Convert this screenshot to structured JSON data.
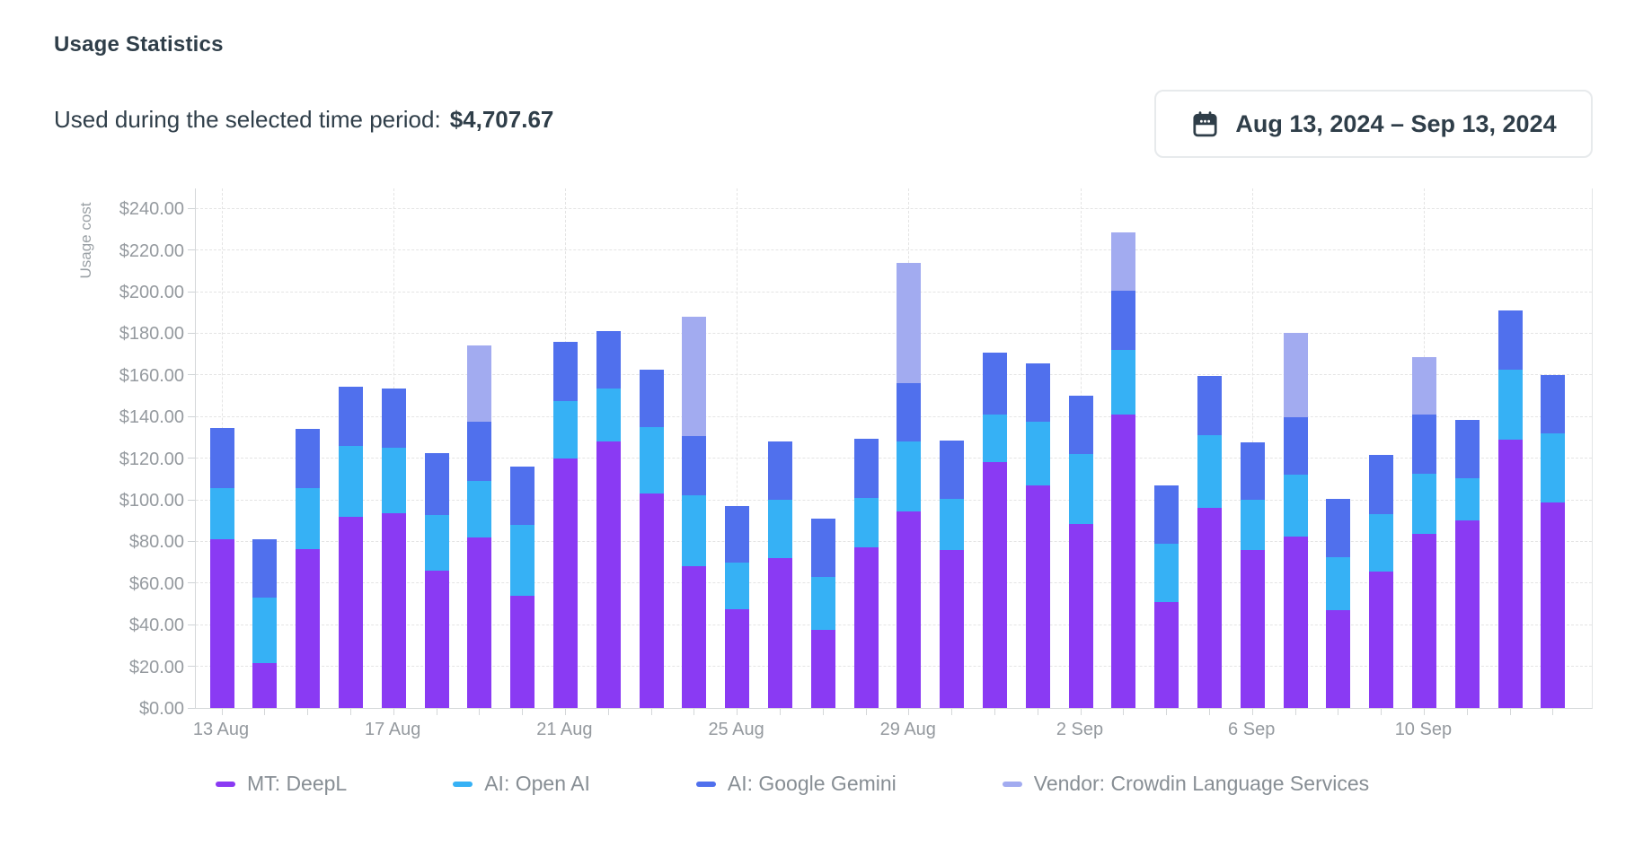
{
  "header": {
    "title": "Usage Statistics",
    "subtitle_label": "Used during the selected time period:",
    "subtitle_value": "$4,707.67",
    "date_range": "Aug 13, 2024 – Sep 13, 2024"
  },
  "colors": {
    "deepl_purple": "#8a3af3",
    "openai_cyan": "#36b1f5",
    "gemini_blue": "#5070ed",
    "crowdin_lavender": "#a2abf0",
    "dark_text": "#2f3e49",
    "axis_text_gray": "#959a9f",
    "legend_text_gray": "#878e94",
    "gridline_gray": "#e4e4e4",
    "button_border": "#e7eaec"
  },
  "chart_data": {
    "type": "bar",
    "stacked": true,
    "title": "",
    "xlabel": "",
    "ylabel": "Usage cost",
    "ylim": [
      0,
      250
    ],
    "grid": "dashed",
    "legend_position": "bottom",
    "ytick_values": [
      0,
      20,
      40,
      60,
      80,
      100,
      120,
      140,
      160,
      180,
      200,
      220,
      240
    ],
    "ytick_labels": [
      "$0.00",
      "$20.00",
      "$40.00",
      "$60.00",
      "$80.00",
      "$100.00",
      "$120.00",
      "$140.00",
      "$160.00",
      "$180.00",
      "$200.00",
      "$220.00",
      "$240.00"
    ],
    "categories": [
      "13 Aug",
      "14 Aug",
      "15 Aug",
      "16 Aug",
      "17 Aug",
      "18 Aug",
      "19 Aug",
      "20 Aug",
      "21 Aug",
      "22 Aug",
      "23 Aug",
      "24 Aug",
      "25 Aug",
      "26 Aug",
      "27 Aug",
      "28 Aug",
      "29 Aug",
      "30 Aug",
      "31 Aug",
      "1 Sep",
      "2 Sep",
      "3 Sep",
      "4 Sep",
      "5 Sep",
      "6 Sep",
      "7 Sep",
      "8 Sep",
      "9 Sep",
      "10 Sep",
      "11 Sep",
      "12 Sep",
      "13 Sep"
    ],
    "xtick_label_indices": [
      0,
      4,
      8,
      12,
      16,
      20,
      24,
      28
    ],
    "xtick_labels": [
      "13 Aug",
      "17 Aug",
      "21 Aug",
      "25 Aug",
      "29 Aug",
      "2 Sep",
      "6 Sep",
      "10 Sep"
    ],
    "series": [
      {
        "name": "MT: DeepL",
        "color": "#8a3af3",
        "values": [
          81,
          21.5,
          76.5,
          92,
          93.5,
          66,
          82,
          54,
          120,
          128,
          103,
          68,
          47.5,
          72,
          37.5,
          77,
          94.5,
          76,
          118,
          107,
          88.5,
          141,
          51,
          96,
          76,
          82.5,
          47,
          65.5,
          83.5,
          90,
          129,
          98.5
        ]
      },
      {
        "name": "AI: Open AI",
        "color": "#36b1f5",
        "values": [
          24.5,
          31.5,
          29,
          34,
          31.5,
          26.5,
          27,
          34,
          27.5,
          25.5,
          32,
          34,
          22.5,
          28,
          25.5,
          24,
          33.5,
          24.5,
          23,
          30.5,
          33.5,
          31,
          28,
          35,
          24,
          29.5,
          25.5,
          27.5,
          29,
          20.5,
          33.5,
          33.5
        ]
      },
      {
        "name": "AI: Google Gemini",
        "color": "#5070ed",
        "values": [
          29,
          28,
          28.5,
          28.5,
          28.5,
          30,
          28.5,
          28,
          28.5,
          27.5,
          27.5,
          28.5,
          27,
          28,
          28,
          28.5,
          28,
          28,
          29.5,
          28,
          28,
          28.5,
          28,
          28.5,
          27.5,
          27.5,
          28,
          28.5,
          28.5,
          28,
          28.5,
          28
        ]
      },
      {
        "name": "Vendor: Crowdin Language Services",
        "color": "#a2abf0",
        "values": [
          0,
          0,
          0,
          0,
          0,
          0,
          36.5,
          0,
          0,
          0,
          0,
          57.5,
          0,
          0,
          0,
          0,
          58,
          0,
          0,
          0,
          0,
          28,
          0,
          0,
          0,
          40.5,
          0,
          0,
          27.5,
          0,
          0,
          0
        ]
      }
    ]
  }
}
